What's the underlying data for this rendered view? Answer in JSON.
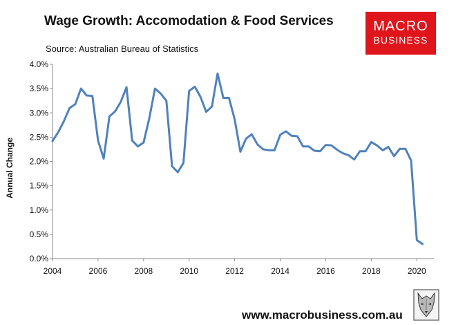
{
  "header": {
    "title": "Wage Growth: Accomodation & Food Services",
    "source": "Source:  Australian Bureau of Statistics"
  },
  "logo": {
    "line1": "MACRO",
    "line2": "BUSINESS"
  },
  "footer": {
    "url": "www.macrobusiness.com.au"
  },
  "colors": {
    "line": "#4f81bd",
    "logo_bg": "#e0141b"
  },
  "chart_data": {
    "type": "line",
    "title": "Wage Growth: Accomodation & Food Services",
    "xlabel": "",
    "ylabel": "Annual Change",
    "xlim": [
      2004,
      2020.75
    ],
    "ylim": [
      0,
      4
    ],
    "x_ticks": [
      2004,
      2006,
      2008,
      2010,
      2012,
      2014,
      2016,
      2018,
      2020
    ],
    "y_ticks": [
      "0.0%",
      "0.5%",
      "1.0%",
      "1.5%",
      "2.0%",
      "2.5%",
      "3.0%",
      "3.5%",
      "4.0%"
    ],
    "grid": false,
    "series": [
      {
        "name": "Accomodation & Food Services",
        "x": [
          2004.0,
          2004.25,
          2004.5,
          2004.75,
          2005.0,
          2005.25,
          2005.5,
          2005.75,
          2006.0,
          2006.25,
          2006.5,
          2006.75,
          2007.0,
          2007.25,
          2007.5,
          2007.75,
          2008.0,
          2008.25,
          2008.5,
          2008.75,
          2009.0,
          2009.25,
          2009.5,
          2009.75,
          2010.0,
          2010.25,
          2010.5,
          2010.75,
          2011.0,
          2011.25,
          2011.5,
          2011.75,
          2012.0,
          2012.25,
          2012.5,
          2012.75,
          2013.0,
          2013.25,
          2013.5,
          2013.75,
          2014.0,
          2014.25,
          2014.5,
          2014.75,
          2015.0,
          2015.25,
          2015.5,
          2015.75,
          2016.0,
          2016.25,
          2016.5,
          2016.75,
          2017.0,
          2017.25,
          2017.5,
          2017.75,
          2018.0,
          2018.25,
          2018.5,
          2018.75,
          2019.0,
          2019.25,
          2019.5,
          2019.75,
          2020.0,
          2020.25
        ],
        "values": [
          2.42,
          2.6,
          2.83,
          3.1,
          3.18,
          3.5,
          3.36,
          3.35,
          2.43,
          2.06,
          2.93,
          3.03,
          3.23,
          3.53,
          2.43,
          2.31,
          2.39,
          2.89,
          3.5,
          3.4,
          3.25,
          1.9,
          1.78,
          1.97,
          3.45,
          3.54,
          3.33,
          3.02,
          3.13,
          3.81,
          3.31,
          3.31,
          2.87,
          2.2,
          2.47,
          2.56,
          2.35,
          2.25,
          2.23,
          2.23,
          2.55,
          2.62,
          2.53,
          2.52,
          2.31,
          2.31,
          2.22,
          2.21,
          2.34,
          2.33,
          2.24,
          2.17,
          2.13,
          2.04,
          2.21,
          2.21,
          2.4,
          2.33,
          2.23,
          2.3,
          2.11,
          2.26,
          2.26,
          2.02,
          0.38,
          0.3
        ]
      }
    ]
  }
}
